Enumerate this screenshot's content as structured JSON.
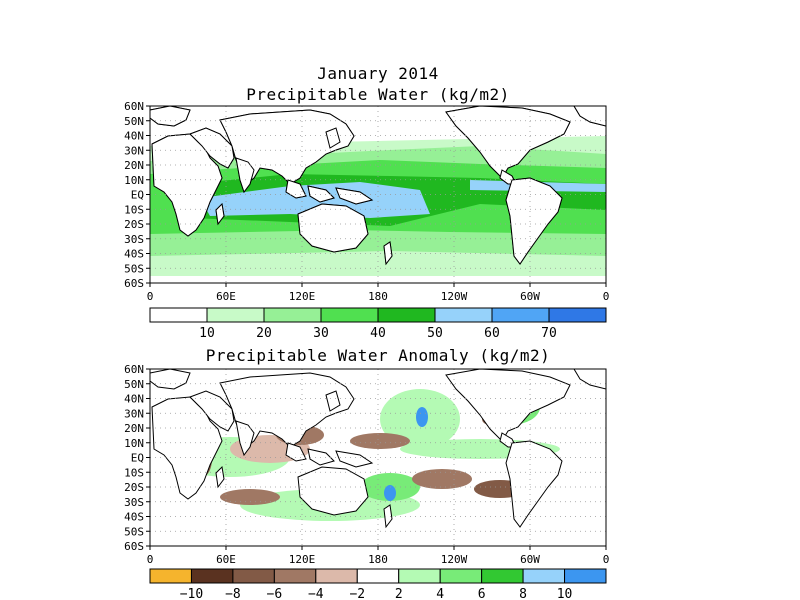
{
  "titles": {
    "line1": "January 2014",
    "line2": "Precipitable Water (kg/m2)",
    "line3": "Precipitable Water Anomaly (kg/m2)"
  },
  "axes": {
    "lat_labels": [
      "60N",
      "50N",
      "40N",
      "30N",
      "20N",
      "10N",
      "EQ",
      "10S",
      "20S",
      "30S",
      "40S",
      "50S",
      "60S"
    ],
    "lon_labels": [
      "0",
      "60E",
      "120E",
      "180",
      "120W",
      "60W",
      "0"
    ]
  },
  "colorbars": {
    "top": {
      "labels": [
        "10",
        "20",
        "30",
        "40",
        "50",
        "60",
        "70"
      ],
      "colors": [
        "#ffffff",
        "#c8fac8",
        "#96f096",
        "#50e050",
        "#20b820",
        "#96d2fa",
        "#50a5f5",
        "#2f78e6"
      ]
    },
    "bottom": {
      "labels": [
        "−10",
        "−8",
        "−6",
        "−4",
        "−2",
        "2",
        "4",
        "6",
        "8",
        "10"
      ],
      "colors": [
        "#f5b42d",
        "#5a3220",
        "#825a46",
        "#a07864",
        "#dcb9aa",
        "#ffffff",
        "#b4fab4",
        "#78eb78",
        "#32c832",
        "#96d2fa",
        "#3c96f0"
      ]
    }
  },
  "map_colors": {
    "land_outline": "#000000",
    "grid": "#999999"
  }
}
